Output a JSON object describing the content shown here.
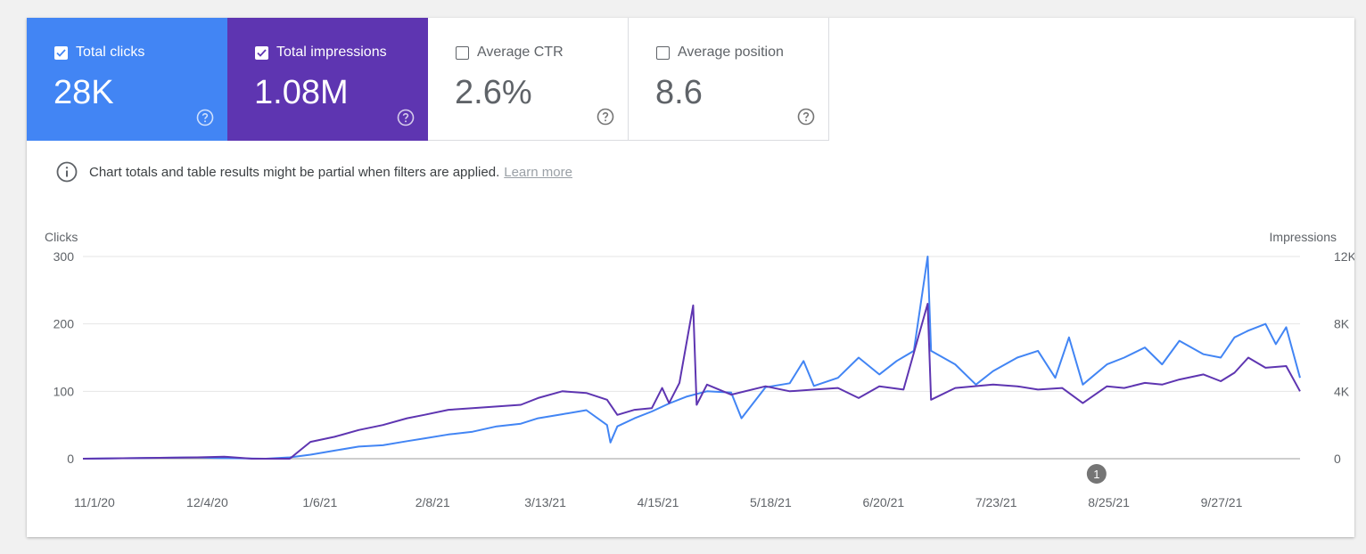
{
  "metrics": [
    {
      "label": "Total clicks",
      "value": "28K",
      "checked": true,
      "color": "#4285f4"
    },
    {
      "label": "Total impressions",
      "value": "1.08M",
      "checked": true,
      "color": "#5e35b1"
    },
    {
      "label": "Average CTR",
      "value": "2.6%",
      "checked": false
    },
    {
      "label": "Average position",
      "value": "8.6",
      "checked": false
    }
  ],
  "notice": {
    "text": "Chart totals and table results might be partial when filters are applied.",
    "link": "Learn more",
    "icon": "info-icon"
  },
  "annotation": {
    "label": "1",
    "date": "8/22/21"
  },
  "chart_data": {
    "type": "line",
    "x_start": "11/1/20",
    "x_end": "10/20/21",
    "x_tick_labels": [
      "11/1/20",
      "12/4/20",
      "1/6/21",
      "2/8/21",
      "3/13/21",
      "4/15/21",
      "5/18/21",
      "6/20/21",
      "7/23/21",
      "8/25/21",
      "9/27/21"
    ],
    "left_axis": {
      "label": "Clicks",
      "ylim": [
        0,
        300
      ],
      "ticks": [
        "0",
        "100",
        "200",
        "300"
      ]
    },
    "right_axis": {
      "label": "Impressions",
      "ylim": [
        0,
        12000
      ],
      "ticks": [
        "0",
        "4K",
        "8K",
        "12K"
      ]
    },
    "grid": true,
    "legend": "none",
    "series": [
      {
        "name": "Clicks",
        "axis": "left",
        "color": "#4285f4",
        "points": [
          [
            "11/1/20",
            0
          ],
          [
            "12/4/20",
            2
          ],
          [
            "12/10/20",
            1
          ],
          [
            "12/24/20",
            0
          ],
          [
            "12/31/20",
            2
          ],
          [
            "1/6/21",
            6
          ],
          [
            "1/13/21",
            12
          ],
          [
            "1/20/21",
            18
          ],
          [
            "1/27/21",
            20
          ],
          [
            "2/3/21",
            26
          ],
          [
            "2/8/21",
            30
          ],
          [
            "2/15/21",
            36
          ],
          [
            "2/22/21",
            40
          ],
          [
            "3/1/21",
            48
          ],
          [
            "3/8/21",
            52
          ],
          [
            "3/13/21",
            60
          ],
          [
            "3/20/21",
            66
          ],
          [
            "3/27/21",
            72
          ],
          [
            "4/2/21",
            50
          ],
          [
            "4/3/21",
            24
          ],
          [
            "4/5/21",
            48
          ],
          [
            "4/10/21",
            60
          ],
          [
            "4/15/21",
            70
          ],
          [
            "4/20/21",
            82
          ],
          [
            "4/25/21",
            92
          ],
          [
            "5/1/21",
            100
          ],
          [
            "5/8/21",
            98
          ],
          [
            "5/11/21",
            60
          ],
          [
            "5/18/21",
            106
          ],
          [
            "5/25/21",
            112
          ],
          [
            "5/29/21",
            145
          ],
          [
            "6/1/21",
            108
          ],
          [
            "6/8/21",
            120
          ],
          [
            "6/14/21",
            150
          ],
          [
            "6/20/21",
            125
          ],
          [
            "6/25/21",
            145
          ],
          [
            "6/30/21",
            160
          ],
          [
            "7/4/21",
            300
          ],
          [
            "7/5/21",
            160
          ],
          [
            "7/12/21",
            140
          ],
          [
            "7/18/21",
            110
          ],
          [
            "7/23/21",
            130
          ],
          [
            "7/30/21",
            150
          ],
          [
            "8/5/21",
            160
          ],
          [
            "8/10/21",
            120
          ],
          [
            "8/14/21",
            180
          ],
          [
            "8/18/21",
            110
          ],
          [
            "8/25/21",
            140
          ],
          [
            "8/30/21",
            150
          ],
          [
            "9/5/21",
            165
          ],
          [
            "9/10/21",
            140
          ],
          [
            "9/15/21",
            175
          ],
          [
            "9/22/21",
            155
          ],
          [
            "9/27/21",
            150
          ],
          [
            "10/1/21",
            180
          ],
          [
            "10/5/21",
            190
          ],
          [
            "10/10/21",
            200
          ],
          [
            "10/13/21",
            170
          ],
          [
            "10/16/21",
            195
          ],
          [
            "10/20/21",
            120
          ]
        ]
      },
      {
        "name": "Impressions",
        "axis": "right",
        "color": "#5e35b1",
        "points": [
          [
            "11/1/20",
            0
          ],
          [
            "12/4/20",
            80
          ],
          [
            "12/12/20",
            120
          ],
          [
            "12/20/20",
            0
          ],
          [
            "12/31/20",
            0
          ],
          [
            "1/3/21",
            500
          ],
          [
            "1/6/21",
            1000
          ],
          [
            "1/13/21",
            1300
          ],
          [
            "1/20/21",
            1700
          ],
          [
            "1/27/21",
            2000
          ],
          [
            "2/3/21",
            2400
          ],
          [
            "2/8/21",
            2600
          ],
          [
            "2/15/21",
            2900
          ],
          [
            "2/22/21",
            3000
          ],
          [
            "3/1/21",
            3100
          ],
          [
            "3/8/21",
            3200
          ],
          [
            "3/13/21",
            3600
          ],
          [
            "3/20/21",
            4000
          ],
          [
            "3/27/21",
            3900
          ],
          [
            "4/2/21",
            3500
          ],
          [
            "4/5/21",
            2600
          ],
          [
            "4/10/21",
            2900
          ],
          [
            "4/15/21",
            3000
          ],
          [
            "4/18/21",
            4200
          ],
          [
            "4/20/21",
            3300
          ],
          [
            "4/23/21",
            4500
          ],
          [
            "4/27/21",
            9100
          ],
          [
            "4/28/21",
            3200
          ],
          [
            "5/1/21",
            4400
          ],
          [
            "5/8/21",
            3800
          ],
          [
            "5/18/21",
            4300
          ],
          [
            "5/25/21",
            4000
          ],
          [
            "6/1/21",
            4100
          ],
          [
            "6/8/21",
            4200
          ],
          [
            "6/14/21",
            3600
          ],
          [
            "6/20/21",
            4300
          ],
          [
            "6/27/21",
            4100
          ],
          [
            "7/4/21",
            9200
          ],
          [
            "7/5/21",
            3500
          ],
          [
            "7/12/21",
            4200
          ],
          [
            "7/23/21",
            4400
          ],
          [
            "7/30/21",
            4300
          ],
          [
            "8/5/21",
            4100
          ],
          [
            "8/12/21",
            4200
          ],
          [
            "8/18/21",
            3300
          ],
          [
            "8/25/21",
            4300
          ],
          [
            "8/30/21",
            4200
          ],
          [
            "9/5/21",
            4500
          ],
          [
            "9/10/21",
            4400
          ],
          [
            "9/15/21",
            4700
          ],
          [
            "9/22/21",
            5000
          ],
          [
            "9/27/21",
            4600
          ],
          [
            "10/1/21",
            5100
          ],
          [
            "10/5/21",
            6000
          ],
          [
            "10/10/21",
            5400
          ],
          [
            "10/16/21",
            5500
          ],
          [
            "10/20/21",
            4000
          ]
        ]
      }
    ]
  }
}
